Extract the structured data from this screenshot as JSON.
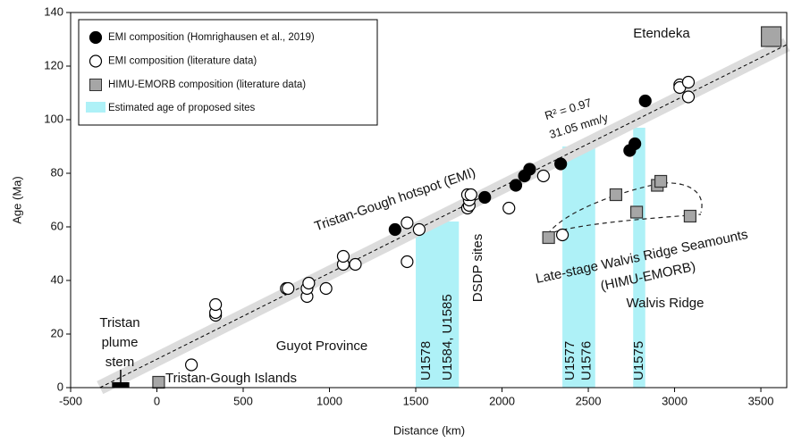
{
  "chart_data": {
    "type": "scatter",
    "xlabel": "Distance (km)",
    "ylabel": "Age (Ma)",
    "xlim": [
      -500,
      3650
    ],
    "ylim": [
      0,
      140
    ],
    "xticks": [
      -500,
      0,
      500,
      1000,
      1500,
      2000,
      2500,
      3000,
      3500
    ],
    "yticks": [
      0,
      20,
      40,
      60,
      80,
      100,
      120,
      140
    ],
    "series": [
      {
        "name": "EMI composition (Homrighausen et al., 2019)",
        "marker": "circle",
        "color": "#000000",
        "edge": "#000000",
        "x": [
          1380,
          1900,
          2080,
          2130,
          2160,
          2340,
          2740,
          2770,
          2830
        ],
        "y": [
          59,
          71,
          75.5,
          79,
          81.5,
          83.5,
          88.5,
          91,
          107
        ]
      },
      {
        "name": "EMI composition (literature data)",
        "marker": "circle",
        "color": "#ffffff",
        "edge": "#000000",
        "x": [
          200,
          340,
          340,
          340,
          750,
          760,
          870,
          870,
          880,
          980,
          1080,
          1080,
          1150,
          1450,
          1450,
          1520,
          1800,
          1810,
          1810,
          1800,
          1820,
          2040,
          2240,
          2350,
          3030,
          3030,
          3080,
          3080
        ],
        "y": [
          8.5,
          27,
          28,
          31,
          37,
          37,
          34,
          37,
          39,
          37,
          46,
          49,
          46,
          47,
          61.5,
          59,
          67,
          68,
          70,
          72,
          72,
          67,
          79,
          57,
          113,
          112,
          108.5,
          114
        ]
      },
      {
        "name": "HIMU-EMORB composition (literature data)",
        "marker": "square",
        "color": "#a6a6a6",
        "edge": "#333333",
        "x": [
          10,
          2270,
          2660,
          2780,
          2900,
          2920,
          3090,
          3560
        ],
        "y": [
          2,
          56,
          72,
          65.5,
          75.5,
          77,
          64,
          131
        ]
      }
    ],
    "band_legend": "Estimated age of proposed sites",
    "band_color": "#aef1f7",
    "bands": [
      {
        "x": [
          1500,
          1750
        ],
        "labels": [
          "U1578",
          "U1584, U1585"
        ]
      },
      {
        "x": [
          2350,
          2540
        ],
        "labels": [
          "U1577",
          "U1576"
        ]
      },
      {
        "x": [
          2760,
          2830
        ],
        "labels": [
          "U1575"
        ]
      }
    ],
    "trend_line": {
      "x": [
        -330,
        3650
      ],
      "y": [
        0,
        128
      ]
    },
    "plume_stem": {
      "x": [
        -260,
        -160
      ]
    },
    "annotations": [
      "R² = 0.97",
      "31.05 mm/y",
      "Tristan-Gough hotspot (EMI)",
      "DSDP sites",
      "Late-stage Walvis Ridge Seamounts",
      "(HIMU-EMORB)",
      "Walvis Ridge",
      "Guyot Province",
      "Tristan-Gough Islands",
      "Tristan",
      "plume",
      "stem",
      "Etendeka"
    ],
    "grid": false
  }
}
